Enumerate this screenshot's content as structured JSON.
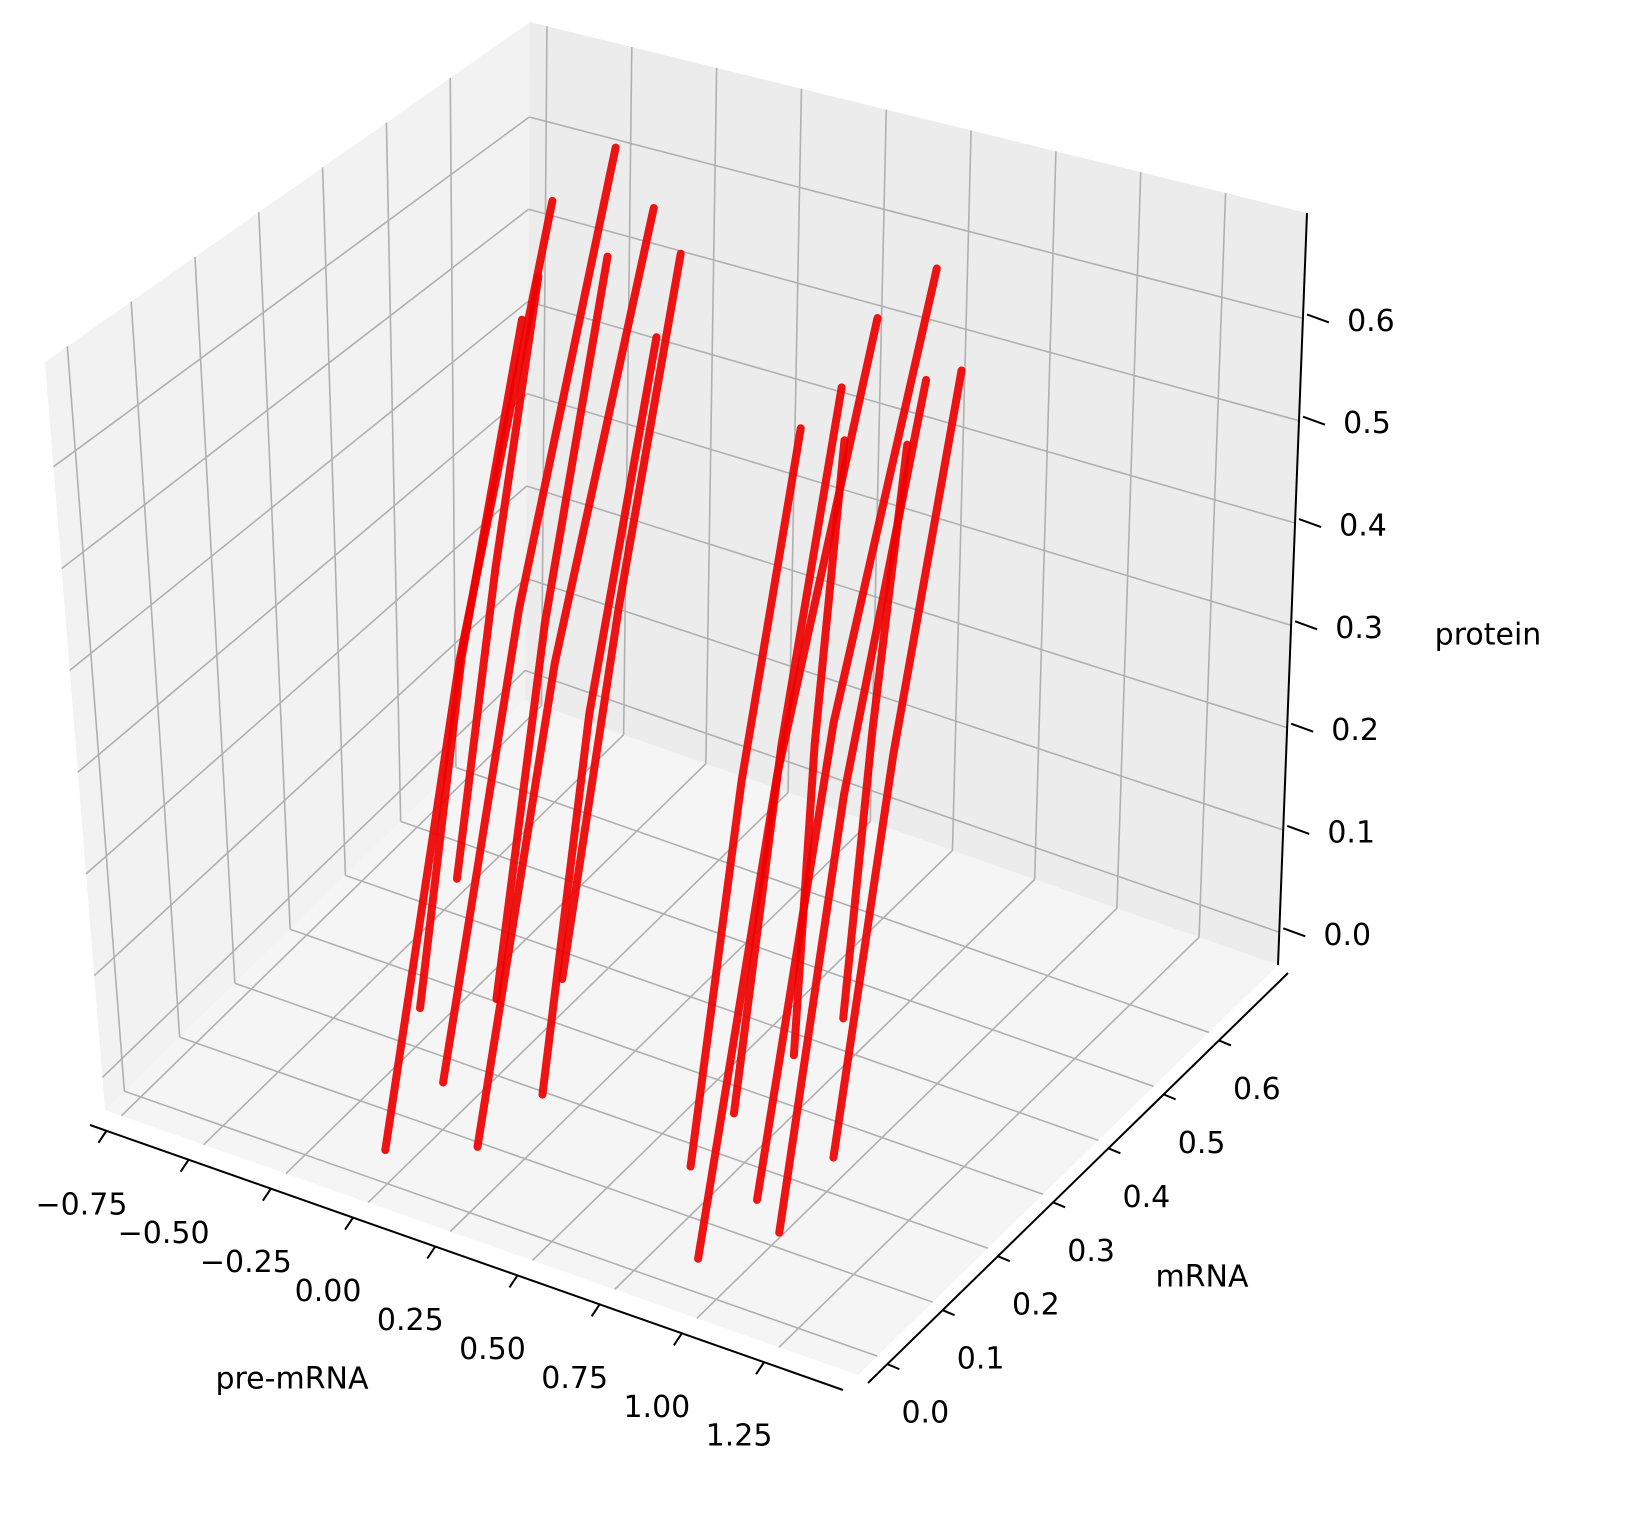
{
  "chart_data": {
    "type": "scatter3d",
    "xlabel": "pre-mRNA",
    "ylabel": "mRNA",
    "zlabel": "protein",
    "color": "#ee0000",
    "grid": true,
    "xlim": [
      -0.8,
      1.49
    ],
    "ylim": [
      -0.035,
      0.725
    ],
    "zlim": [
      -0.032,
      0.703
    ],
    "xticks": [
      {
        "value": -0.75,
        "label": "−0.75"
      },
      {
        "value": -0.5,
        "label": "−0.50"
      },
      {
        "value": -0.25,
        "label": "−0.25"
      },
      {
        "value": 0,
        "label": "0.00"
      },
      {
        "value": 0.25,
        "label": "0.25"
      },
      {
        "value": 0.5,
        "label": "0.50"
      },
      {
        "value": 0.75,
        "label": "0.75"
      },
      {
        "value": 1,
        "label": "1.00"
      },
      {
        "value": 1.25,
        "label": "1.25"
      }
    ],
    "yticks": [
      {
        "value": 0,
        "label": "0.0"
      },
      0.1,
      0.2,
      0.3,
      0.4,
      0.5,
      0.6
    ],
    "zticks": [
      {
        "value": 0,
        "label": "0.0"
      },
      0.1,
      0.2,
      0.3,
      0.4,
      0.5,
      0.6
    ],
    "series": [
      {
        "x": [
          0.0,
          -0.25,
          -0.5
        ],
        "y": [
          0.0,
          0.3,
          0.6
        ],
        "z": [
          0.0,
          0.3,
          0.6
        ]
      },
      {
        "x": [
          0.1,
          -0.12,
          -0.35
        ],
        "y": [
          0.05,
          0.33,
          0.62
        ],
        "z": [
          0.05,
          0.35,
          0.66
        ]
      },
      {
        "x": [
          -0.05,
          -0.28,
          -0.5
        ],
        "y": [
          0.1,
          0.32,
          0.55
        ],
        "z": [
          0.08,
          0.29,
          0.5
        ]
      },
      {
        "x": [
          0.25,
          0.02,
          -0.2
        ],
        "y": [
          0.02,
          0.31,
          0.6
        ],
        "z": [
          0.02,
          0.32,
          0.62
        ]
      },
      {
        "x": [
          0.15,
          -0.08,
          -0.3
        ],
        "y": [
          0.12,
          0.35,
          0.58
        ],
        "z": [
          0.1,
          0.33,
          0.57
        ]
      },
      {
        "x": [
          0.35,
          0.12,
          -0.1
        ],
        "y": [
          0.08,
          0.31,
          0.55
        ],
        "z": [
          0.05,
          0.28,
          0.52
        ]
      },
      {
        "x": [
          -0.1,
          -0.28,
          -0.45
        ],
        "y": [
          0.2,
          0.38,
          0.55
        ],
        "z": [
          0.15,
          0.35,
          0.55
        ]
      },
      {
        "x": [
          0.3,
          0.09,
          -0.12
        ],
        "y": [
          0.15,
          0.38,
          0.6
        ],
        "z": [
          0.12,
          0.35,
          0.58
        ]
      },
      {
        "x": [
          0.95,
          0.72,
          0.5
        ],
        "y": [
          0.0,
          0.29,
          0.58
        ],
        "z": [
          0.0,
          0.29,
          0.58
        ]
      },
      {
        "x": [
          1.05,
          0.82,
          0.6
        ],
        "y": [
          0.05,
          0.33,
          0.62
        ],
        "z": [
          0.04,
          0.33,
          0.62
        ]
      },
      {
        "x": [
          0.9,
          0.68,
          0.45
        ],
        "y": [
          0.1,
          0.32,
          0.55
        ],
        "z": [
          0.08,
          0.3,
          0.52
        ]
      },
      {
        "x": [
          1.15,
          0.92,
          0.7
        ],
        "y": [
          0.03,
          0.29,
          0.55
        ],
        "z": [
          0.03,
          0.29,
          0.55
        ]
      },
      {
        "x": [
          1.2,
          0.98,
          0.75
        ],
        "y": [
          0.1,
          0.34,
          0.58
        ],
        "z": [
          0.07,
          0.31,
          0.55
        ]
      },
      {
        "x": [
          1.0,
          0.78,
          0.55
        ],
        "y": [
          0.15,
          0.32,
          0.5
        ],
        "z": [
          0.12,
          0.31,
          0.5
        ]
      },
      {
        "x": [
          1.1,
          0.9,
          0.7
        ],
        "y": [
          0.18,
          0.35,
          0.52
        ],
        "z": [
          0.15,
          0.32,
          0.5
        ]
      },
      {
        "x": [
          0.85,
          0.63,
          0.42
        ],
        "y": [
          0.05,
          0.28,
          0.5
        ],
        "z": [
          0.05,
          0.28,
          0.5
        ]
      }
    ]
  }
}
